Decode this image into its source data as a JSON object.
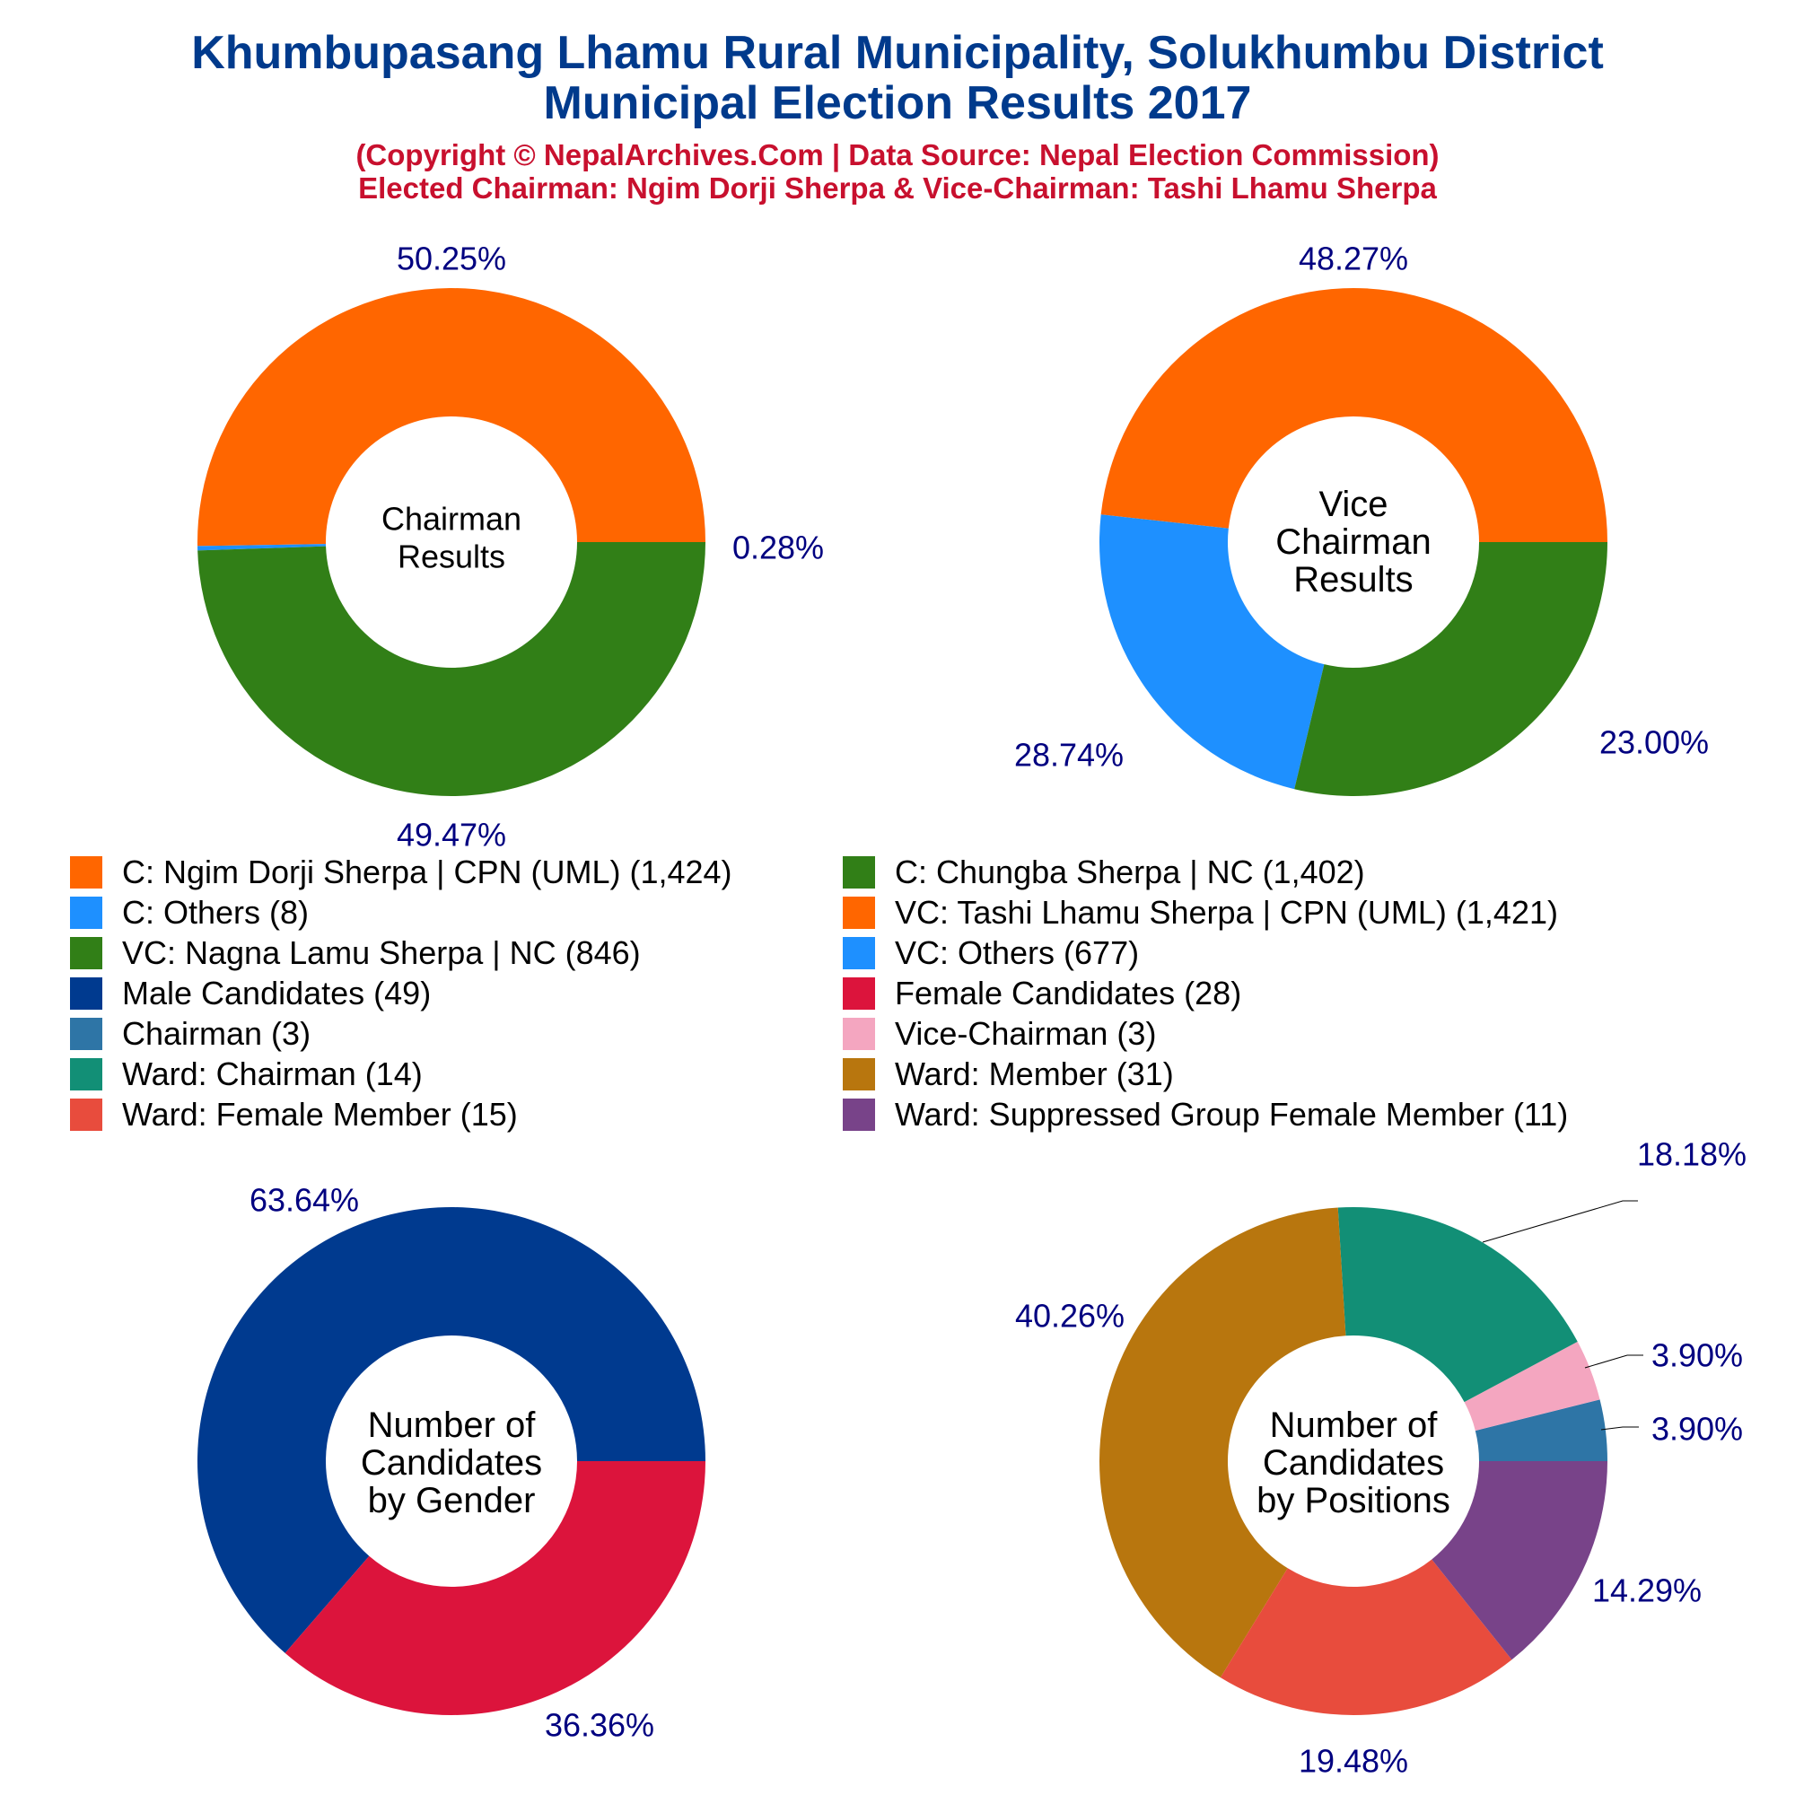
{
  "header": {
    "title_line1": "Khumbupasang Lhamu Rural Municipality, Solukhumbu District",
    "title_line2": "Municipal Election Results 2017",
    "subtitle_line1": "(Copyright © NepalArchives.Com | Data Source: Nepal Election Commission)",
    "subtitle_line2": "Elected Chairman: Ngim Dorji Sherpa & Vice-Chairman: Tashi Lhamu Sherpa"
  },
  "colors": {
    "title": "#003a8c",
    "subtitle": "#c8102e",
    "percent_label": "#000080"
  },
  "legend": [
    {
      "label": "C: Ngim Dorji Sherpa | CPN (UML) (1,424)",
      "color": "#ff6600"
    },
    {
      "label": "C: Chungba Sherpa | NC (1,402)",
      "color": "#317f17"
    },
    {
      "label": "C: Others (8)",
      "color": "#1e90ff"
    },
    {
      "label": "VC: Tashi Lhamu Sherpa | CPN (UML) (1,421)",
      "color": "#ff6600"
    },
    {
      "label": "VC: Nagna Lamu Sherpa | NC (846)",
      "color": "#317f17"
    },
    {
      "label": "VC: Others (677)",
      "color": "#1e90ff"
    },
    {
      "label": "Male Candidates (49)",
      "color": "#003a8f"
    },
    {
      "label": "Female Candidates (28)",
      "color": "#dc143c"
    },
    {
      "label": "Chairman (3)",
      "color": "#2e75a6"
    },
    {
      "label": "Vice-Chairman (3)",
      "color": "#f4a6c0"
    },
    {
      "label": "Ward: Chairman (14)",
      "color": "#128f76"
    },
    {
      "label": "Ward: Member (31)",
      "color": "#b8760e"
    },
    {
      "label": "Ward: Female Member (15)",
      "color": "#e84c3d"
    },
    {
      "label": "Ward: Suppressed Group Female Member (11)",
      "color": "#784389"
    }
  ],
  "chart_data": [
    {
      "type": "pie",
      "center_label": [
        "Chairman",
        "Results"
      ],
      "slices": [
        {
          "label": "C: Ngim Dorji Sherpa | CPN (UML)",
          "value": 1424,
          "percent_label": "50.25%",
          "color": "#ff6600"
        },
        {
          "label": "C: Others",
          "value": 8,
          "percent_label": "0.28%",
          "color": "#1e90ff"
        },
        {
          "label": "C: Chungba Sherpa | NC",
          "value": 1402,
          "percent_label": "49.47%",
          "color": "#317f17"
        }
      ]
    },
    {
      "type": "pie",
      "center_label": [
        "Vice",
        "Chairman",
        "Results"
      ],
      "slices": [
        {
          "label": "VC: Tashi Lhamu Sherpa | CPN (UML)",
          "value": 1421,
          "percent_label": "48.27%",
          "color": "#ff6600"
        },
        {
          "label": "VC: Others",
          "value": 677,
          "percent_label": "23.00%",
          "color": "#1e90ff"
        },
        {
          "label": "VC: Nagna Lamu Sherpa | NC",
          "value": 846,
          "percent_label": "28.74%",
          "color": "#317f17"
        }
      ]
    },
    {
      "type": "pie",
      "center_label": [
        "Number of",
        "Candidates",
        "by Gender"
      ],
      "slices": [
        {
          "label": "Male Candidates",
          "value": 49,
          "percent_label": "63.64%",
          "color": "#003a8f"
        },
        {
          "label": "Female Candidates",
          "value": 28,
          "percent_label": "36.36%",
          "color": "#dc143c"
        }
      ]
    },
    {
      "type": "pie",
      "center_label": [
        "Number of",
        "Candidates",
        "by Positions"
      ],
      "slices": [
        {
          "label": "Chairman",
          "value": 3,
          "percent_label": "3.90%",
          "color": "#2e75a6"
        },
        {
          "label": "Vice-Chairman",
          "value": 3,
          "percent_label": "3.90%",
          "color": "#f4a6c0"
        },
        {
          "label": "Ward: Chairman",
          "value": 14,
          "percent_label": "18.18%",
          "color": "#128f76"
        },
        {
          "label": "Ward: Member",
          "value": 31,
          "percent_label": "40.26%",
          "color": "#b8760e"
        },
        {
          "label": "Ward: Female Member",
          "value": 15,
          "percent_label": "19.48%",
          "color": "#e84c3d"
        },
        {
          "label": "Ward: Suppressed Group Female Member",
          "value": 11,
          "percent_label": "14.29%",
          "color": "#784389"
        }
      ]
    }
  ]
}
